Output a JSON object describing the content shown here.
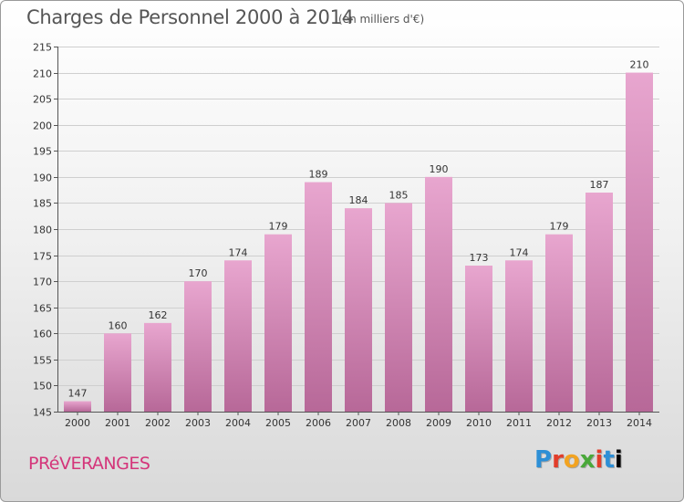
{
  "header": {
    "title": "Charges de Personnel 2000 à 2014",
    "subtitle": "(en milliers d'€)"
  },
  "footer": {
    "commune": "PRéVERANGES",
    "logo_letters": [
      "P",
      "r",
      "o",
      "x",
      "i",
      "t",
      "i"
    ]
  },
  "chart_data": {
    "type": "bar",
    "title": "Charges de Personnel 2000 à 2014",
    "subtitle": "(en milliers d'€)",
    "categories": [
      "2000",
      "2001",
      "2002",
      "2003",
      "2004",
      "2005",
      "2006",
      "2007",
      "2008",
      "2009",
      "2010",
      "2011",
      "2012",
      "2013",
      "2014"
    ],
    "values": [
      147,
      160,
      162,
      170,
      174,
      179,
      189,
      184,
      185,
      190,
      173,
      174,
      179,
      187,
      210
    ],
    "ylim": [
      145,
      215
    ],
    "yticks": [
      145,
      150,
      155,
      160,
      165,
      170,
      175,
      180,
      185,
      190,
      195,
      200,
      205,
      210,
      215
    ],
    "grid": true,
    "colors": {
      "bar_top": "#e8a6cf",
      "bar_bottom": "#b76898",
      "grid": "#cfcfcf",
      "text": "#333333"
    }
  }
}
